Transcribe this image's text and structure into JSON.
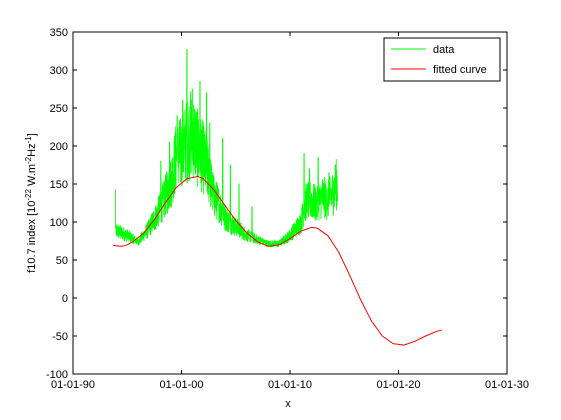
{
  "chart_data": {
    "type": "line",
    "title": "",
    "xlabel": "x",
    "ylabel": {
      "base": "f10.7 index [10",
      "exp1": "-22",
      "mid1": " W.m",
      "exp2": "-2",
      "mid2": "Hz",
      "exp3": "-1",
      "end": "]"
    },
    "xticks": [
      "01-01-90",
      "01-01-00",
      "01-01-10",
      "01-01-20",
      "01-01-30"
    ],
    "xtick_years": [
      1990,
      2000,
      2010,
      2020,
      2030
    ],
    "xlim": [
      1990,
      2030
    ],
    "yticks": [
      "350",
      "300",
      "250",
      "200",
      "150",
      "100",
      "50",
      "0",
      "-50",
      "-100"
    ],
    "ytick_values": [
      350,
      300,
      250,
      200,
      150,
      100,
      50,
      0,
      -50,
      -100
    ],
    "ylim": [
      -100,
      350
    ],
    "grid": false,
    "legend_position": "top-right",
    "series": [
      {
        "name": "data",
        "color": "#00ff00",
        "x_range": [
          1993.9,
          2014.4
        ],
        "x": [
          1994.0,
          1995.0,
          1996.0,
          1997.0,
          1998.0,
          1999.0,
          1999.5,
          2000.0,
          2000.5,
          2001.0,
          2001.5,
          2002.0,
          2002.5,
          2003.0,
          2003.5,
          2004.0,
          2005.0,
          2006.0,
          2007.0,
          2008.0,
          2009.0,
          2010.0,
          2011.0,
          2011.5,
          2012.0,
          2012.5,
          2013.0,
          2013.5,
          2014.0,
          2014.3
        ],
        "y": [
          85,
          80,
          72,
          88,
          110,
          140,
          170,
          175,
          190,
          200,
          180,
          170,
          150,
          125,
          115,
          100,
          90,
          80,
          75,
          70,
          70,
          80,
          95,
          120,
          120,
          115,
          125,
          120,
          130,
          140
        ],
        "peaks": [
          {
            "x": 1993.9,
            "y": 143
          },
          {
            "x": 1998.1,
            "y": 180
          },
          {
            "x": 1998.9,
            "y": 205
          },
          {
            "x": 1999.6,
            "y": 240
          },
          {
            "x": 2000.1,
            "y": 260
          },
          {
            "x": 2000.5,
            "y": 327
          },
          {
            "x": 2001.0,
            "y": 275
          },
          {
            "x": 2001.7,
            "y": 285
          },
          {
            "x": 2002.3,
            "y": 270
          },
          {
            "x": 2002.6,
            "y": 230
          },
          {
            "x": 2003.8,
            "y": 210
          },
          {
            "x": 2004.5,
            "y": 175
          },
          {
            "x": 2005.3,
            "y": 150
          },
          {
            "x": 2006.5,
            "y": 120
          },
          {
            "x": 2011.3,
            "y": 190
          },
          {
            "x": 2011.8,
            "y": 170
          },
          {
            "x": 2012.6,
            "y": 185
          },
          {
            "x": 2013.6,
            "y": 165
          },
          {
            "x": 2014.2,
            "y": 175
          }
        ]
      },
      {
        "name": "fitted curve",
        "color": "#ff0000",
        "x": [
          1993.7,
          1994.5,
          1995.0,
          1995.5,
          1996.5,
          1997.5,
          1998.5,
          1999.5,
          2000.5,
          2001.5,
          2002.0,
          2003.0,
          2004.0,
          2005.0,
          2006.0,
          2007.0,
          2008.0,
          2009.0,
          2010.0,
          2011.0,
          2012.0,
          2012.5,
          2013.5,
          2014.5,
          2015.5,
          2016.5,
          2017.5,
          2018.5,
          2019.5,
          2020.5,
          2021.5,
          2022.5,
          2023.5,
          2024.0
        ],
        "y": [
          69,
          68,
          70,
          74,
          85,
          103,
          125,
          145,
          157,
          160,
          157,
          142,
          122,
          102,
          86,
          74,
          68,
          70,
          78,
          88,
          93,
          92,
          82,
          60,
          30,
          -2,
          -30,
          -50,
          -60,
          -62,
          -57,
          -50,
          -44,
          -42
        ]
      }
    ]
  }
}
